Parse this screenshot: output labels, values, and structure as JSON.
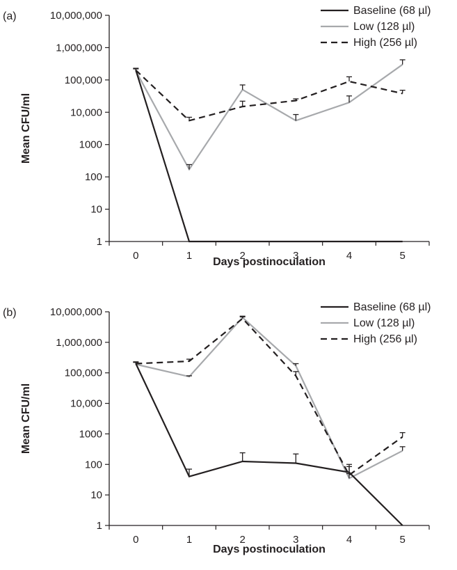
{
  "chart_data": [
    {
      "panel_label": "(a)",
      "type": "line",
      "xlabel": "Days postinoculation",
      "ylabel": "Mean CFU/ml",
      "y_scale": "log",
      "ylim": [
        1,
        10000000
      ],
      "y_tick_labels": [
        "1",
        "10",
        "100",
        "1000",
        "10,000",
        "100,000",
        "1,000,000",
        "10,000,000"
      ],
      "x": [
        0,
        1,
        2,
        3,
        4,
        5
      ],
      "x_tick_labels": [
        "0",
        "1",
        "2",
        "3",
        "4",
        "5"
      ],
      "legend_position": "top-right",
      "grid": false,
      "series": [
        {
          "name": "Baseline (68 µl)",
          "color": "#231f20",
          "dash": "solid",
          "values": [
            200000,
            1,
            1,
            1,
            1,
            1
          ],
          "error_upper": [
            null,
            null,
            null,
            null,
            null,
            null
          ]
        },
        {
          "name": "Low (128 µl)",
          "color": "#a7a9ac",
          "dash": "solid",
          "values": [
            190000,
            170,
            50000,
            5500,
            20000,
            300000
          ],
          "error_upper": [
            220000,
            240,
            70000,
            8500,
            32000,
            420000
          ]
        },
        {
          "name": "High (256 µl)",
          "color": "#231f20",
          "dash": "dashed",
          "values": [
            200000,
            5500,
            15000,
            23000,
            90000,
            38000
          ],
          "error_upper": [
            230000,
            7000,
            22000,
            26000,
            125000,
            48000
          ]
        }
      ]
    },
    {
      "panel_label": "(b)",
      "type": "line",
      "xlabel": "Days postinoculation",
      "ylabel": "Mean CFU/ml",
      "y_scale": "log",
      "ylim": [
        1,
        10000000
      ],
      "y_tick_labels": [
        "1",
        "10",
        "100",
        "1000",
        "10,000",
        "100,000",
        "1,000,000",
        "10,000,000"
      ],
      "x": [
        0,
        1,
        2,
        3,
        4,
        5
      ],
      "x_tick_labels": [
        "0",
        "1",
        "2",
        "3",
        "4",
        "5"
      ],
      "legend_position": "top-right",
      "grid": false,
      "series": [
        {
          "name": "Baseline (68 µl)",
          "color": "#231f20",
          "dash": "solid",
          "values": [
            200000,
            40,
            125,
            110,
            55,
            1
          ],
          "error_upper": [
            null,
            70,
            240,
            220,
            85,
            null
          ]
        },
        {
          "name": "Low (128 µl)",
          "color": "#a7a9ac",
          "dash": "solid",
          "values": [
            190000,
            75000,
            6500000,
            170000,
            35,
            280
          ],
          "error_upper": [
            220000,
            80000,
            7200000,
            200000,
            50,
            380
          ]
        },
        {
          "name": "High (256 µl)",
          "color": "#231f20",
          "dash": "dashed",
          "values": [
            200000,
            240000,
            6000000,
            80000,
            45,
            800
          ],
          "error_upper": [
            230000,
            280000,
            6800000,
            110000,
            100,
            1100
          ]
        }
      ]
    }
  ]
}
